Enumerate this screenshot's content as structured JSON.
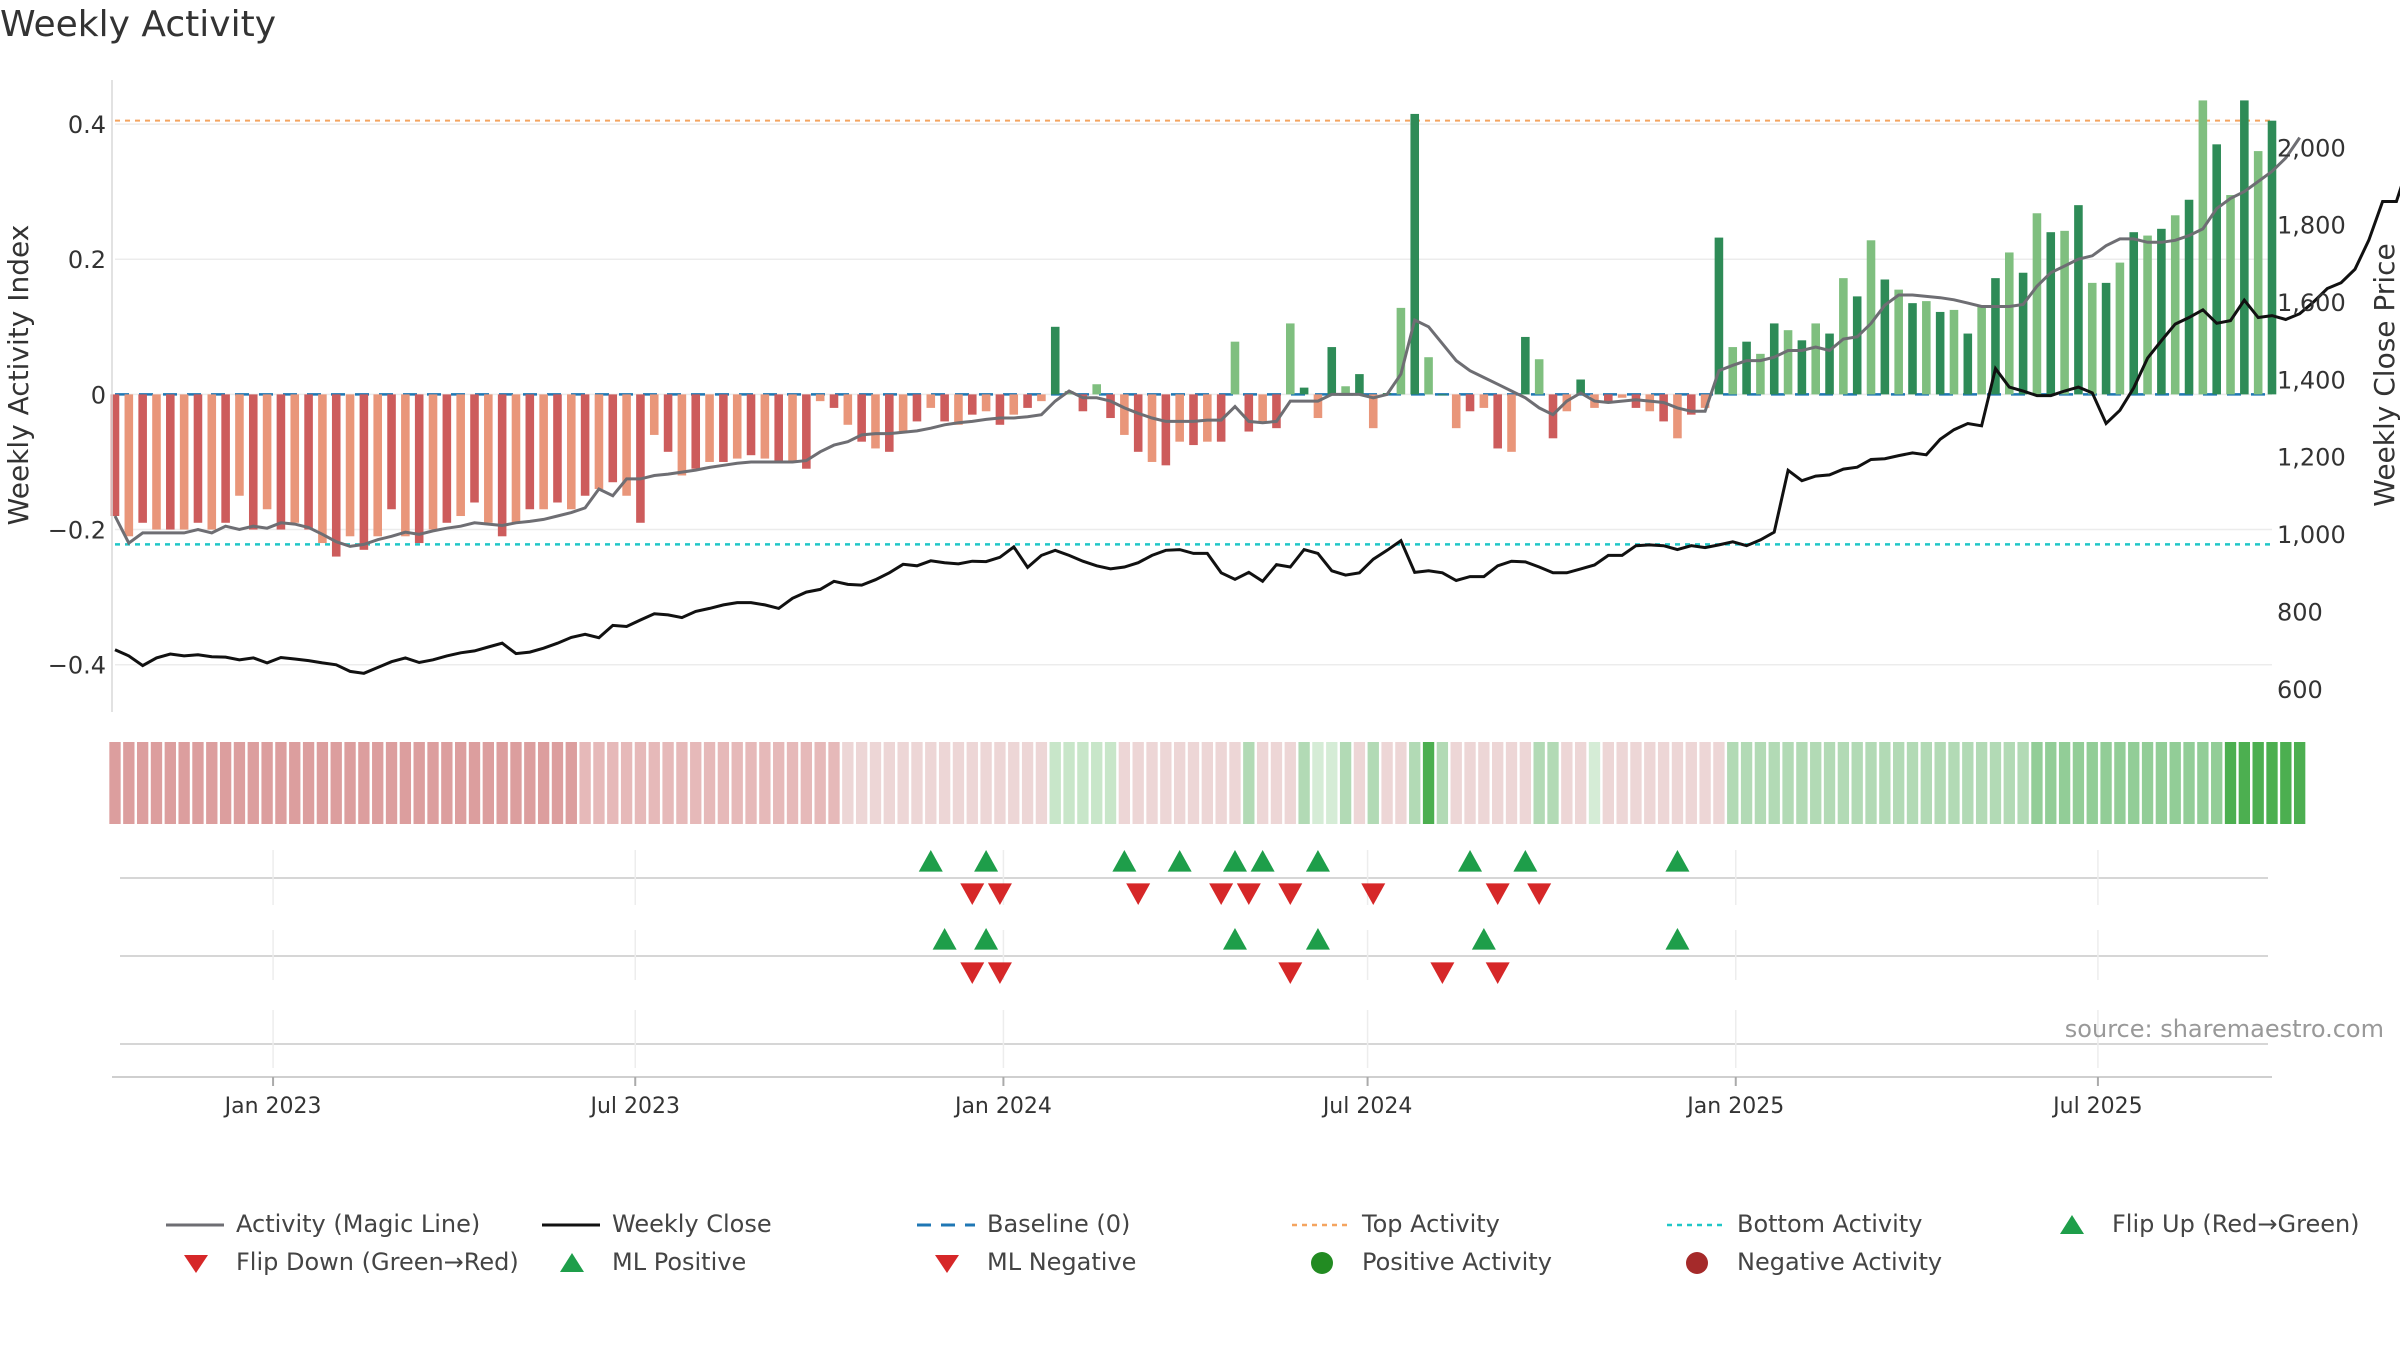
{
  "title": "Weekly Activity",
  "source": "source: sharemaestro.com",
  "chart_data": {
    "type": "bar",
    "title": "Weekly Activity",
    "ylabel": "Weekly Activity Index",
    "y2label": "Weekly Close Price",
    "ylim": [
      -0.47,
      0.48
    ],
    "y2lim": [
      540,
      2200
    ],
    "yticks": [
      0.4,
      0.2,
      0,
      -0.2,
      -0.4
    ],
    "ytick_labels": [
      "0.4",
      "0.2",
      "0",
      "−0.2",
      "−0.4"
    ],
    "y2ticks": [
      2000,
      1800,
      1600,
      1400,
      1200,
      1000,
      800,
      600
    ],
    "y2tick_labels": [
      "2,000",
      "1,800",
      "1,600",
      "1,400",
      "1,200",
      "1,000",
      "800",
      "600"
    ],
    "x_start": "2022-10-14",
    "x_end": "2025-09-26",
    "xtick_dates": [
      "2023-01-01",
      "2023-07-01",
      "2024-01-01",
      "2024-07-01",
      "2025-01-01",
      "2025-07-01"
    ],
    "xtick_labels": [
      "Jan 2023",
      "Jul 2023",
      "Jan 2024",
      "Jul 2024",
      "Jan 2025",
      "Jul 2025"
    ],
    "top_activity": 0.405,
    "bottom_activity": -0.222,
    "activity": [
      -0.18,
      -0.21,
      -0.19,
      -0.2,
      -0.2,
      -0.2,
      -0.19,
      -0.2,
      -0.19,
      -0.15,
      -0.2,
      -0.17,
      -0.2,
      -0.19,
      -0.2,
      -0.22,
      -0.24,
      -0.21,
      -0.23,
      -0.21,
      -0.17,
      -0.21,
      -0.22,
      -0.2,
      -0.19,
      -0.18,
      -0.16,
      -0.19,
      -0.21,
      -0.19,
      -0.17,
      -0.17,
      -0.16,
      -0.17,
      -0.15,
      -0.14,
      -0.13,
      -0.15,
      -0.19,
      -0.06,
      -0.085,
      -0.12,
      -0.11,
      -0.1,
      -0.1,
      -0.095,
      -0.09,
      -0.095,
      -0.1,
      -0.1,
      -0.11,
      -0.01,
      -0.02,
      -0.045,
      -0.07,
      -0.08,
      -0.085,
      -0.055,
      -0.04,
      -0.02,
      -0.04,
      -0.045,
      -0.03,
      -0.025,
      -0.045,
      -0.03,
      -0.02,
      -0.01,
      0.1,
      0.005,
      -0.025,
      0.015,
      -0.035,
      -0.06,
      -0.085,
      -0.1,
      -0.105,
      -0.07,
      -0.075,
      -0.07,
      -0.07,
      0.078,
      -0.055,
      -0.04,
      -0.05,
      0.105,
      0.01,
      -0.035,
      0.07,
      0.012,
      0.03,
      -0.05,
      0.002,
      0.128,
      0.415,
      0.055,
      0.0,
      -0.05,
      -0.025,
      -0.02,
      -0.08,
      -0.085,
      0.085,
      0.052,
      -0.065,
      -0.025,
      0.022,
      -0.02,
      -0.01,
      -0.005,
      -0.02,
      -0.025,
      -0.04,
      -0.065,
      -0.03,
      -0.02,
      0.232,
      0.07,
      0.078,
      0.06,
      0.105,
      0.095,
      0.08,
      0.105,
      0.09,
      0.172,
      0.145,
      0.228,
      0.17,
      0.155,
      0.135,
      0.138,
      0.122,
      0.125,
      0.09,
      0.13,
      0.172,
      0.21,
      0.18,
      0.268,
      0.24,
      0.242,
      0.28,
      0.165,
      0.165,
      0.195,
      0.24,
      0.235,
      0.245,
      0.265,
      0.288,
      0.435,
      0.37,
      0.295,
      0.435,
      0.36,
      0.405
    ],
    "magic_line": [
      -0.18,
      -0.22,
      -0.205,
      -0.205,
      -0.205,
      -0.205,
      -0.2,
      -0.205,
      -0.195,
      -0.2,
      -0.195,
      -0.198,
      -0.19,
      -0.192,
      -0.197,
      -0.207,
      -0.218,
      -0.225,
      -0.222,
      -0.215,
      -0.21,
      -0.204,
      -0.207,
      -0.202,
      -0.198,
      -0.195,
      -0.19,
      -0.192,
      -0.194,
      -0.19,
      -0.188,
      -0.185,
      -0.18,
      -0.175,
      -0.168,
      -0.14,
      -0.15,
      -0.125,
      -0.125,
      -0.12,
      -0.118,
      -0.115,
      -0.112,
      -0.108,
      -0.105,
      -0.102,
      -0.1,
      -0.1,
      -0.1,
      -0.1,
      -0.098,
      -0.085,
      -0.075,
      -0.07,
      -0.06,
      -0.058,
      -0.058,
      -0.056,
      -0.054,
      -0.05,
      -0.045,
      -0.042,
      -0.04,
      -0.037,
      -0.035,
      -0.035,
      -0.033,
      -0.03,
      -0.01,
      0.005,
      -0.005,
      -0.005,
      -0.01,
      -0.02,
      -0.028,
      -0.035,
      -0.04,
      -0.04,
      -0.04,
      -0.038,
      -0.038,
      -0.018,
      -0.04,
      -0.042,
      -0.04,
      -0.01,
      -0.01,
      -0.01,
      0.0,
      0.0,
      0.0,
      -0.005,
      0.0,
      0.03,
      0.11,
      0.1,
      0.075,
      0.05,
      0.035,
      0.025,
      0.015,
      0.005,
      -0.005,
      -0.02,
      -0.03,
      -0.01,
      0.002,
      -0.01,
      -0.012,
      -0.01,
      -0.008,
      -0.01,
      -0.012,
      -0.02,
      -0.025,
      -0.025,
      0.035,
      0.043,
      0.05,
      0.05,
      0.055,
      0.065,
      0.065,
      0.07,
      0.065,
      0.082,
      0.085,
      0.105,
      0.132,
      0.147,
      0.147,
      0.145,
      0.143,
      0.14,
      0.135,
      0.13,
      0.13,
      0.13,
      0.133,
      0.16,
      0.18,
      0.19,
      0.2,
      0.205,
      0.22,
      0.23,
      0.23,
      0.225,
      0.225,
      0.228,
      0.235,
      0.245,
      0.275,
      0.29,
      0.3,
      0.315,
      0.33,
      0.35,
      0.38
    ],
    "close": [
      701,
      685,
      660,
      680,
      690,
      685,
      688,
      683,
      682,
      675,
      680,
      667,
      681,
      677,
      673,
      667,
      662,
      645,
      640,
      655,
      670,
      680,
      668,
      675,
      685,
      693,
      698,
      708,
      718,
      691,
      695,
      705,
      718,
      733,
      741,
      732,
      764,
      761,
      778,
      794,
      791,
      784,
      800,
      808,
      817,
      823,
      823,
      817,
      808,
      834,
      850,
      857,
      878,
      870,
      868,
      882,
      900,
      922,
      918,
      931,
      926,
      923,
      930,
      929,
      940,
      967,
      914,
      945,
      958,
      945,
      930,
      918,
      910,
      915,
      926,
      945,
      958,
      960,
      950,
      950,
      900,
      883,
      901,
      878,
      921,
      915,
      960,
      950,
      905,
      894,
      900,
      935,
      958,
      983,
      901,
      905,
      900,
      880,
      890,
      890,
      918,
      930,
      928,
      915,
      900,
      900,
      910,
      920,
      945,
      945,
      970,
      972,
      970,
      960,
      970,
      965,
      972,
      980,
      970,
      985,
      1005,
      1165,
      1138,
      1150,
      1153,
      1168,
      1173,
      1193,
      1195,
      1203,
      1210,
      1205,
      1245,
      1270,
      1286,
      1280,
      1428,
      1380,
      1370,
      1358,
      1358,
      1370,
      1380,
      1365,
      1286,
      1320,
      1378,
      1455,
      1500,
      1543,
      1560,
      1580,
      1545,
      1552,
      1605,
      1560,
      1565,
      1555,
      1570,
      1600,
      1635,
      1650,
      1685,
      1760,
      1860,
      1860,
      1970,
      1990,
      2060
    ],
    "heat_strip_colors": [
      "#dc9e9e",
      "#dc9e9e",
      "#dc9e9e",
      "#dc9e9e",
      "#dc9e9e",
      "#dc9e9e",
      "#dc9e9e",
      "#dc9e9e",
      "#dc9e9e",
      "#dc9e9e",
      "#dc9e9e",
      "#dc9e9e",
      "#dc9e9e",
      "#dc9e9e",
      "#dc9e9e",
      "#dc9e9e",
      "#dc9e9e",
      "#dc9e9e",
      "#dc9e9e",
      "#dc9e9e",
      "#dc9e9e",
      "#dc9e9e",
      "#dc9e9e",
      "#dc9e9e",
      "#dc9e9e",
      "#dc9e9e",
      "#dc9e9e",
      "#dc9e9e",
      "#dc9e9e",
      "#dc9e9e",
      "#dc9e9e",
      "#dc9e9e",
      "#dc9e9e",
      "#dc9e9e",
      "#e6b9b9",
      "#e6b9b9",
      "#e6b9b9",
      "#e6b9b9",
      "#e6b9b9",
      "#e6b9b9",
      "#e6b9b9",
      "#e6b9b9",
      "#e6b9b9",
      "#e6b9b9",
      "#e6b9b9",
      "#e6b9b9",
      "#e6b9b9",
      "#e6b9b9",
      "#e6b9b9",
      "#e6b9b9",
      "#e6b9b9",
      "#e6b9b9",
      "#e6b9b9",
      "#edd6d6",
      "#edd6d6",
      "#edd6d6",
      "#edd6d6",
      "#edd6d6",
      "#edd6d6",
      "#edd6d6",
      "#edd6d6",
      "#edd6d6",
      "#edd6d6",
      "#edd6d6",
      "#edd6d6",
      "#edd6d6",
      "#edd6d6",
      "#edd6d6",
      "#c8e6c9",
      "#c8e6c9",
      "#c8e6c9",
      "#c8e6c9",
      "#c8e6c9",
      "#edd6d6",
      "#edd6d6",
      "#edd6d6",
      "#edd6d6",
      "#edd6d6",
      "#edd6d6",
      "#edd6d6",
      "#edd6d6",
      "#edd6d6",
      "#b2dab5",
      "#edd6d6",
      "#edd6d6",
      "#edd6d6",
      "#b2dab5",
      "#d5ecd6",
      "#d5ecd6",
      "#b2dab5",
      "#edd6d6",
      "#b2dab5",
      "#edd6d6",
      "#edd6d6",
      "#b2dab5",
      "#4caf50",
      "#b2dab5",
      "#edd6d6",
      "#edd6d6",
      "#edd6d6",
      "#edd6d6",
      "#edd6d6",
      "#edd6d6",
      "#b2dab5",
      "#b2dab5",
      "#edd6d6",
      "#edd6d6",
      "#d5ecd6",
      "#edd6d6",
      "#edd6d6",
      "#edd6d6",
      "#edd6d6",
      "#edd6d6",
      "#edd6d6",
      "#edd6d6",
      "#edd6d6",
      "#edd6d6",
      "#b2dab5",
      "#b2dab5",
      "#b2dab5",
      "#b2dab5",
      "#b2dab5",
      "#b2dab5",
      "#b2dab5",
      "#b2dab5",
      "#b2dab5",
      "#b2dab5",
      "#b2dab5",
      "#b2dab5",
      "#b2dab5",
      "#b2dab5",
      "#b2dab5",
      "#b2dab5",
      "#b2dab5",
      "#b2dab5",
      "#b2dab5",
      "#b2dab5",
      "#b2dab5",
      "#b2dab5",
      "#92cd97",
      "#92cd97",
      "#92cd97",
      "#92cd97",
      "#92cd97",
      "#92cd97",
      "#92cd97",
      "#92cd97",
      "#92cd97",
      "#92cd97",
      "#92cd97",
      "#92cd97",
      "#92cd97",
      "#92cd97",
      "#4caf50",
      "#4caf50",
      "#4caf50",
      "#4caf50",
      "#4caf50",
      "#4caf50"
    ],
    "flip_up_weeks": [
      59,
      63,
      73,
      77,
      81,
      83,
      87,
      98,
      102,
      113
    ],
    "flip_down_weeks": [
      62,
      64,
      74,
      80,
      82,
      85,
      91,
      100,
      103
    ],
    "ml_positive_weeks": [
      60,
      63,
      81,
      87,
      99,
      113
    ],
    "ml_negative_weeks": [
      62,
      64,
      85,
      96,
      100
    ],
    "colors": {
      "strong_green": "#2e8b57",
      "light_green": "#7fbf7f",
      "strong_red": "#cd5c5c",
      "light_red": "#e9967a",
      "magic_line": "#6e6e73",
      "close_line": "#111111",
      "baseline": "#1f77b4",
      "top_line": "#f4a460",
      "bottom_line": "#20c7c7",
      "flip_up": "#1e9e4a",
      "flip_down": "#d62728",
      "positive_dot": "#228b22",
      "negative_dot": "#a52a2a"
    },
    "legend": [
      {
        "label": "Activity (Magic Line)",
        "icon": "solid-line",
        "color": "#6e6e73"
      },
      {
        "label": "Weekly Close",
        "icon": "solid-line",
        "color": "#111111"
      },
      {
        "label": "Baseline (0)",
        "icon": "dashed-line",
        "color": "#1f77b4"
      },
      {
        "label": "Top Activity",
        "icon": "dotted-line",
        "color": "#f4a460"
      },
      {
        "label": "Bottom Activity",
        "icon": "dotted-line",
        "color": "#20c7c7"
      },
      {
        "label": "Flip Up (Red→Green)",
        "icon": "triangle-up",
        "color": "#1e9e4a"
      },
      {
        "label": "Flip Down (Green→Red)",
        "icon": "triangle-down",
        "color": "#d62728"
      },
      {
        "label": "ML Positive",
        "icon": "triangle-up",
        "color": "#1e9e4a"
      },
      {
        "label": "ML Negative",
        "icon": "triangle-down",
        "color": "#d62728"
      },
      {
        "label": "Positive Activity",
        "icon": "dot",
        "color": "#228b22"
      },
      {
        "label": "Negative Activity",
        "icon": "dot",
        "color": "#a52a2a"
      }
    ]
  }
}
